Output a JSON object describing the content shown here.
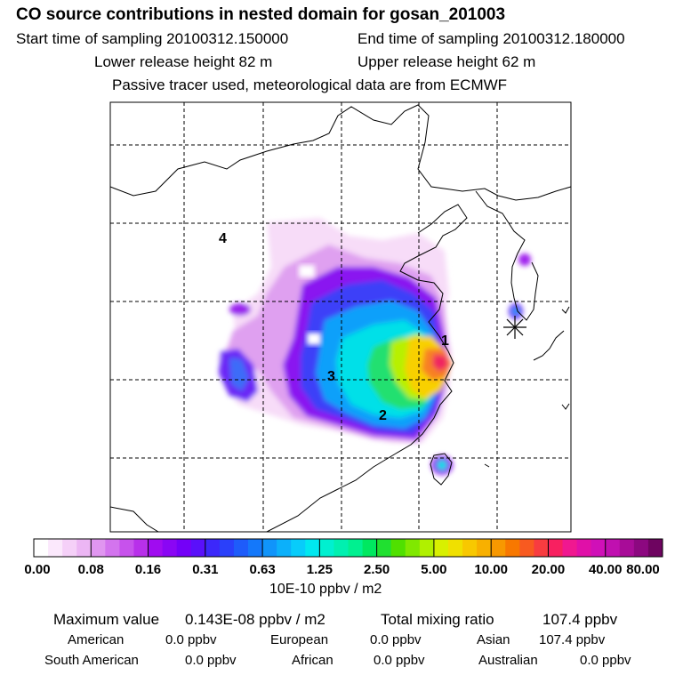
{
  "header": {
    "title": "CO  source contributions in nested domain for gosan_201003",
    "start_label": "Start time of sampling 20100312.150000",
    "end_label": "End time of sampling 20100312.180000",
    "lower_label": "Lower release height   82 m",
    "upper_label": "Upper release height   62 m",
    "note": "Passive tracer used, meteorological data are from ECMWF"
  },
  "map": {
    "region_labels": [
      "1",
      "2",
      "3",
      "4"
    ],
    "receptor_marker": "asterisk-icon"
  },
  "colorbar": {
    "tick_labels": [
      "0.00",
      "0.08",
      "0.16",
      "0.31",
      "0.63",
      "1.25",
      "2.50",
      "5.00",
      "10.00",
      "20.00",
      "40.00",
      "80.00"
    ],
    "colors": [
      "#ffffff",
      "#fbe8fc",
      "#f5d0f8",
      "#ecb6f4",
      "#e096f0",
      "#d374ee",
      "#c752ec",
      "#b830ea",
      "#a00cf0",
      "#8a06f4",
      "#7400f8",
      "#5a10fa",
      "#3c28fa",
      "#2a40fa",
      "#1e5cfa",
      "#1478fa",
      "#1094fa",
      "#0cb0fa",
      "#08ccfa",
      "#00e8f0",
      "#00f0d0",
      "#00f0b0",
      "#00f090",
      "#00e860",
      "#20e030",
      "#50e000",
      "#80e800",
      "#b0f000",
      "#d8f000",
      "#f0e000",
      "#f8c800",
      "#f8b000",
      "#f89800",
      "#f87800",
      "#f85a20",
      "#f83c40",
      "#f82060",
      "#f01890",
      "#e010a8",
      "#d010b8",
      "#c010b0",
      "#a80c98",
      "#8c0880",
      "#6e0460"
    ],
    "units": "10E-10 ppbv / m2"
  },
  "summary": {
    "max_label": "Maximum value",
    "max_value": "0.143E-08 ppbv / m2",
    "total_label": "Total mixing ratio",
    "total_value": "107.4 ppbv",
    "sources": [
      {
        "name": "American",
        "value": "0.0 ppbv"
      },
      {
        "name": "European",
        "value": "0.0 ppbv"
      },
      {
        "name": "Asian",
        "value": "107.4 ppbv"
      },
      {
        "name": "South American",
        "value": "0.0 ppbv"
      },
      {
        "name": "African",
        "value": "0.0 ppbv"
      },
      {
        "name": "Australian",
        "value": "0.0 ppbv"
      }
    ]
  }
}
